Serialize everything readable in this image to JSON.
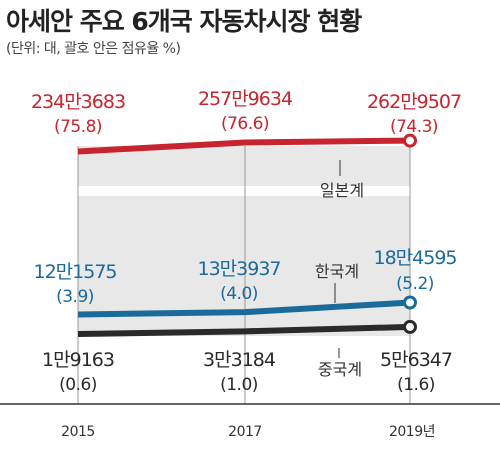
{
  "title": "아세안 주요 6개국 자동차시장 현황",
  "subtitle": "(단위: 대, 괄호 안은 점유율 %)",
  "colors": {
    "japan": "#c8242f",
    "korea": "#1a6a9a",
    "china": "#2a2a2a",
    "band": "#e8e8e8"
  },
  "chart_data": {
    "type": "line",
    "x": [
      "2015",
      "2017",
      "2019년"
    ],
    "series": [
      {
        "name": "일본계",
        "values": [
          2343683,
          2579634,
          2629507
        ],
        "shares": [
          75.8,
          76.6,
          74.3
        ],
        "labels": [
          "234만3683",
          "257만9634",
          "262만9507"
        ],
        "share_labels": [
          "(75.8)",
          "(76.6)",
          "(74.3)"
        ]
      },
      {
        "name": "한국계",
        "values": [
          121575,
          133937,
          184595
        ],
        "shares": [
          3.9,
          4.0,
          5.2
        ],
        "labels": [
          "12만1575",
          "13만3937",
          "18만4595"
        ],
        "share_labels": [
          "(3.9)",
          "(4.0)",
          "(5.2)"
        ]
      },
      {
        "name": "중국계",
        "values": [
          19163,
          33184,
          56347
        ],
        "shares": [
          0.6,
          1.0,
          1.6
        ],
        "labels": [
          "1만9163",
          "3만3184",
          "5만6347"
        ],
        "share_labels": [
          "(0.6)",
          "(1.0)",
          "(1.6)"
        ]
      }
    ]
  }
}
